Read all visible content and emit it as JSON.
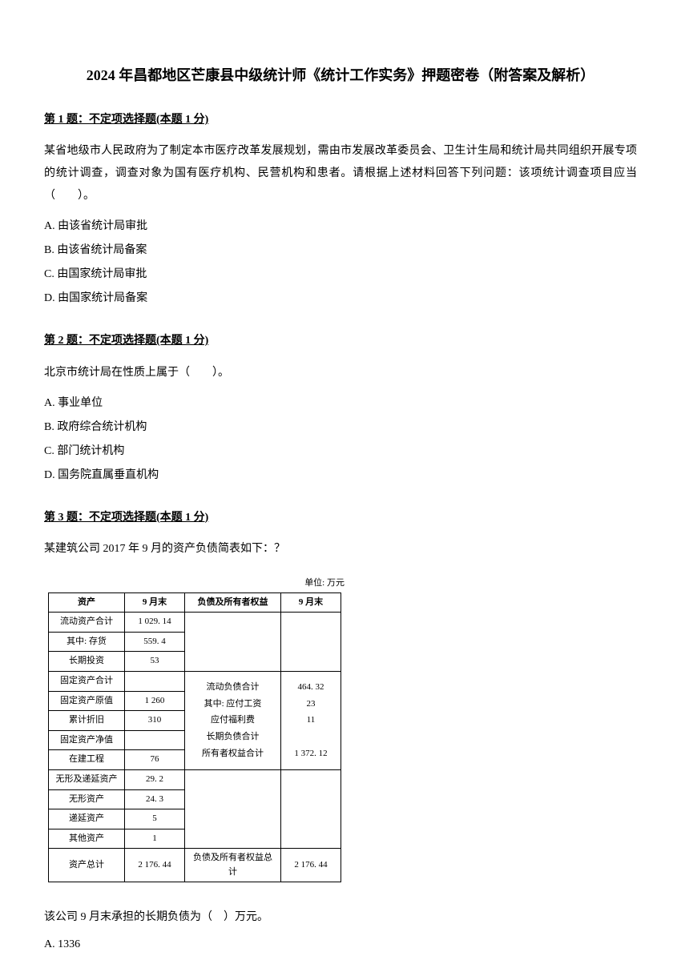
{
  "title": "2024 年昌都地区芒康县中级统计师《统计工作实务》押题密卷（附答案及解析）",
  "q1": {
    "header": "第 1 题：不定项选择题(本题 1 分)",
    "text": "某省地级市人民政府为了制定本市医疗改革发展规划，需由市发展改革委员会、卫生计生局和统计局共同组织开展专项的统计调查，调查对象为国有医疗机构、民营机构和患者。请根据上述材料回答下列问题：该项统计调查项目应当（　　）。",
    "options": {
      "A": "A. 由该省统计局审批",
      "B": "B. 由该省统计局备案",
      "C": "C. 由国家统计局审批",
      "D": "D. 由国家统计局备案"
    }
  },
  "q2": {
    "header": "第 2 题：不定项选择题(本题 1 分)",
    "text": "北京市统计局在性质上属于（　　）。",
    "options": {
      "A": "A. 事业单位",
      "B": "B. 政府综合统计机构",
      "C": "C. 部门统计机构",
      "D": "D. 国务院直属垂直机构"
    }
  },
  "q3": {
    "header": "第 3 题：不定项选择题(本题 1 分)",
    "text": "某建筑公司 2017 年 9 月的资产负债简表如下：？",
    "table": {
      "unit": "单位: 万元",
      "headers": {
        "asset": "资产",
        "val1": "9 月末",
        "liab": "负债及所有者权益",
        "val2": "9 月末"
      },
      "left_rows": [
        {
          "label": "流动资产合计",
          "val": "1 029. 14"
        },
        {
          "label": "其中: 存货",
          "val": "559. 4"
        },
        {
          "label": "长期投资",
          "val": "53"
        },
        {
          "label": "固定资产合计",
          "val": ""
        },
        {
          "label": "固定资产原值",
          "val": "1 260"
        },
        {
          "label": "累计折旧",
          "val": "310"
        },
        {
          "label": "固定资产净值",
          "val": ""
        },
        {
          "label": "在建工程",
          "val": "76"
        },
        {
          "label": "无形及递延资产",
          "val": "29. 2"
        },
        {
          "label": "无形资产",
          "val": "24. 3"
        },
        {
          "label": "递延资产",
          "val": "5"
        },
        {
          "label": "其他资产",
          "val": "1"
        }
      ],
      "right_rows": [
        {
          "label": "流动负债合计",
          "val": "464. 32"
        },
        {
          "label": "其中: 应付工资",
          "val": "23"
        },
        {
          "label": "应付福利费",
          "val": "11"
        },
        {
          "label": "长期负债合计",
          "val": ""
        },
        {
          "label": "所有者权益合计",
          "val": "1 372. 12"
        }
      ],
      "footer": {
        "asset_total_label": "资产总计",
        "asset_total_val": "2 176. 44",
        "liab_total_label": "负债及所有者权益总计",
        "liab_total_val": "2 176. 44"
      }
    },
    "followup": "该公司 9 月末承担的长期负债为（　）万元。",
    "options": {
      "A": "A. 1336"
    }
  }
}
